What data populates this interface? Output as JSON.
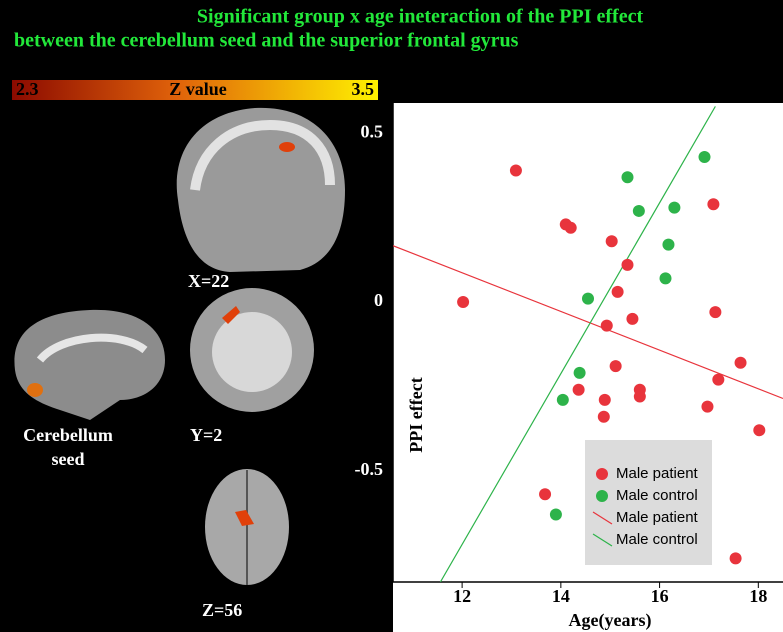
{
  "chart_data": {
    "type": "scatter",
    "title": "Significant group x age ineteraction of the PPI effect",
    "subtitle": "between the cerebellum seed and the superior frontal gyrus",
    "x_label": "Age(years)",
    "y_label": "PPI effect",
    "xlim": [
      10.6,
      18.5
    ],
    "ylim": [
      -0.83,
      0.59
    ],
    "xticks": [
      12,
      14,
      16,
      18
    ],
    "yticks": [
      -0.5,
      0,
      0.5
    ],
    "series": [
      {
        "name": "Male patient",
        "color": "#e8343c",
        "x": [
          13.09,
          12.02,
          14.1,
          14.2,
          15.03,
          17.09,
          15.35,
          15.15,
          14.93,
          15.45,
          17.13,
          15.11,
          14.36,
          17.64,
          17.19,
          15.6,
          15.6,
          14.89,
          14.87,
          16.97,
          18.02,
          13.68,
          17.54
        ],
        "values": [
          0.39,
          0.0,
          0.23,
          0.22,
          0.18,
          0.29,
          0.11,
          0.03,
          -0.07,
          -0.05,
          -0.03,
          -0.19,
          -0.26,
          -0.18,
          -0.23,
          -0.26,
          -0.28,
          -0.29,
          -0.34,
          -0.31,
          -0.38,
          -0.57,
          -0.76
        ]
      },
      {
        "name": "Male control",
        "color": "#2db34a",
        "x": [
          15.35,
          15.58,
          16.3,
          16.91,
          16.18,
          16.12,
          14.55,
          14.38,
          14.04,
          13.9
        ],
        "values": [
          0.37,
          0.27,
          0.28,
          0.43,
          0.17,
          0.07,
          0.01,
          -0.21,
          -0.29,
          -0.63
        ]
      }
    ],
    "lines": [
      {
        "name": "Male patient",
        "color": "#e8343c",
        "x": [
          10.6,
          18.5
        ],
        "values": [
          0.167,
          -0.286
        ]
      },
      {
        "name": "Male control",
        "color": "#2db34a",
        "x": [
          11.56,
          17.13
        ],
        "values": [
          -0.83,
          0.58
        ]
      }
    ]
  },
  "panels": {
    "colorbar": {
      "min": 2.3,
      "label": "Z value",
      "max": 3.5
    },
    "labels": [
      "X=22",
      "Y=2",
      "Z=56",
      "Cerebellum",
      "seed"
    ]
  }
}
